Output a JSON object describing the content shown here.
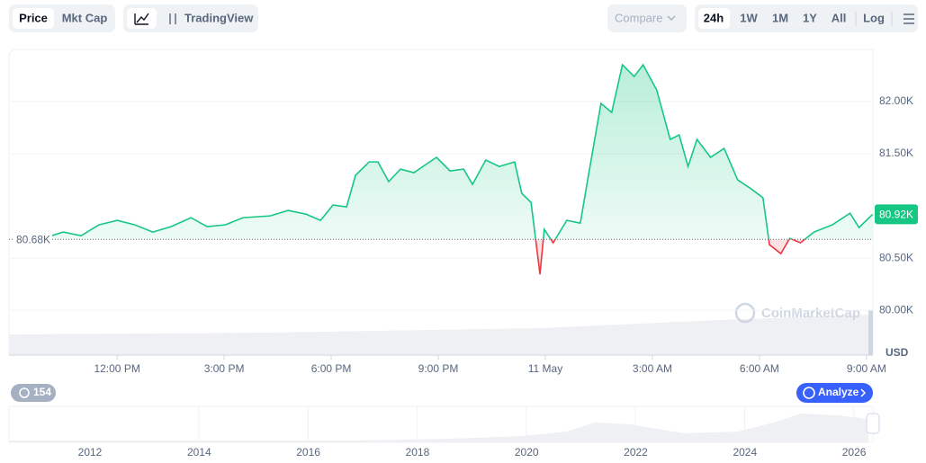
{
  "toolbar": {
    "tabs": [
      "Price",
      "Mkt Cap"
    ],
    "tradingview": "TradingView",
    "compare": "Compare",
    "ranges": [
      "24h",
      "1W",
      "1M",
      "1Y",
      "All"
    ],
    "log": "Log"
  },
  "chart_data": {
    "type": "line",
    "color": "#16c784",
    "down_color": "#ea3943",
    "x": [
      10.16,
      10.49,
      10.99,
      11.49,
      12.0,
      12.5,
      13.0,
      13.51,
      14.07,
      14.52,
      15.03,
      15.53,
      16.29,
      16.79,
      17.29,
      17.7,
      18.05,
      18.43,
      18.68,
      19.06,
      19.31,
      19.61,
      19.94,
      20.32,
      20.57,
      20.95,
      21.33,
      21.71,
      21.96,
      22.33,
      22.71,
      23.14,
      23.34,
      23.6,
      23.85,
      23.97,
      24.22,
      24.6,
      24.98,
      25.23,
      25.56,
      25.86,
      26.16,
      26.49,
      26.74,
      27.12,
      27.5,
      27.75,
      28.0,
      28.25,
      28.63,
      29.01,
      29.39,
      29.77,
      30.1,
      30.28,
      30.6,
      30.85,
      31.15,
      31.53,
      32.04,
      32.54,
      32.79,
      33.17
    ],
    "values": [
      80715,
      80750,
      80715,
      80819,
      80862,
      80819,
      80750,
      80802,
      80888,
      80802,
      80819,
      80888,
      80905,
      80957,
      80922,
      80862,
      81009,
      80991,
      81293,
      81422,
      81422,
      81233,
      81353,
      81319,
      81379,
      81466,
      81336,
      81353,
      81207,
      81440,
      81379,
      81422,
      81121,
      81034,
      80345,
      80776,
      80647,
      80862,
      80836,
      81336,
      81983,
      81897,
      82353,
      82241,
      82353,
      82112,
      81638,
      81681,
      81379,
      81638,
      81466,
      81552,
      81250,
      81164,
      81078,
      80629,
      80543,
      80690,
      80647,
      80750,
      80819,
      80931,
      80793,
      80920
    ],
    "xlim": [
      8.97,
      33.18
    ],
    "ylim": [
      79700,
      82500
    ],
    "xticks": [
      {
        "value": 12,
        "label": "12:00 PM"
      },
      {
        "value": 15,
        "label": "3:00 PM"
      },
      {
        "value": 18,
        "label": "6:00 PM"
      },
      {
        "value": 21,
        "label": "9:00 PM"
      },
      {
        "value": 24,
        "label": "11 May"
      },
      {
        "value": 27,
        "label": "3:00 AM"
      },
      {
        "value": 30,
        "label": "6:00 AM"
      },
      {
        "value": 33,
        "label": "9:00 AM"
      }
    ],
    "yticks": [
      {
        "value": 80000,
        "label": "80.00K"
      },
      {
        "value": 80500,
        "label": "80.50K"
      },
      {
        "value": 81500,
        "label": "81.50K"
      },
      {
        "value": 82000,
        "label": "82.00K"
      }
    ],
    "reference": {
      "value": 80680,
      "label": "80.68K"
    },
    "last": {
      "value": 80920,
      "label": "80.92K"
    },
    "currency": "USD",
    "watermark": "CoinMarketCap"
  },
  "navigator": {
    "years": [
      "2012",
      "2014",
      "2016",
      "2018",
      "2020",
      "2022",
      "2024",
      "2026"
    ]
  },
  "badge_count": 154,
  "analyze": "Analyze"
}
